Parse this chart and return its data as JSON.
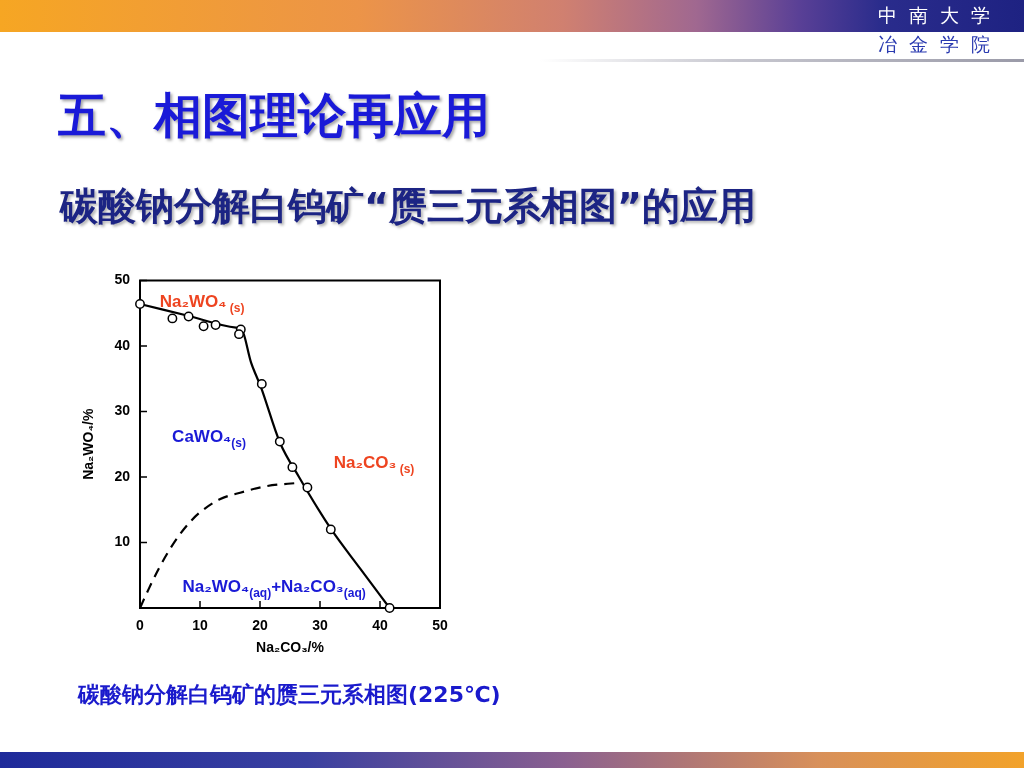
{
  "chart_data": {
    "type": "scatter",
    "title": "五、相图理论再应用",
    "subtitle": "碳酸钠分解白钨矿“赝三元系相图”的应用",
    "xlabel": "Na₂CO₃/%",
    "ylabel": "Na₂WO₄/%",
    "xlim": [
      0,
      50
    ],
    "ylim": [
      0,
      50
    ],
    "xticks": [
      0,
      10,
      20,
      30,
      40,
      50
    ],
    "yticks": [
      10,
      20,
      30,
      40,
      50
    ],
    "grid": false,
    "legend": false,
    "series": [
      {
        "type": "line",
        "color": "#000000",
        "line_style": "solid",
        "marker": "none",
        "x": [
          0,
          8,
          16,
          16.9,
          18.5,
          20.2,
          23.3,
          26.5,
          31.8,
          36.7,
          41.6
        ],
        "values": [
          46.4,
          44.6,
          42.8,
          42.6,
          37.5,
          33.6,
          25.3,
          20.0,
          12.1,
          6.0,
          0
        ]
      },
      {
        "type": "line",
        "color": "#000000",
        "line_style": "dashed",
        "marker": "none",
        "x": [
          0,
          1.5,
          3.3,
          5,
          6.7,
          8.3,
          10,
          13.3,
          16.7,
          21.1,
          26.4
        ],
        "values": [
          0,
          3,
          6.3,
          9,
          11.3,
          13.1,
          14.6,
          16.6,
          17.6,
          18.6,
          19.1
        ]
      },
      {
        "color": "#000000",
        "marker": "circle",
        "x": [
          0,
          5.4,
          8.1,
          10.6,
          12.6,
          16.8,
          16.5,
          20.3,
          23.3,
          25.4,
          27.9,
          31.8,
          41.6
        ],
        "values": [
          46.4,
          44.2,
          44.5,
          43.0,
          43.2,
          42.5,
          41.8,
          34.2,
          25.4,
          21.5,
          18.4,
          12.0,
          0
        ]
      }
    ],
    "annotations": [
      "Na₂WO₄$_{ (s)}$",
      "CaWO₄$_{(s)}$",
      "Na₂CO₃$_{ (s)}$",
      "Na₂WO₄$_{(aq)}$+Na₂CO₃$_{(aq)}$",
      "碳酸钠分解白钨矿的赝三元系相图(225℃)",
      "中南大学",
      "冶金学院"
    ]
  }
}
